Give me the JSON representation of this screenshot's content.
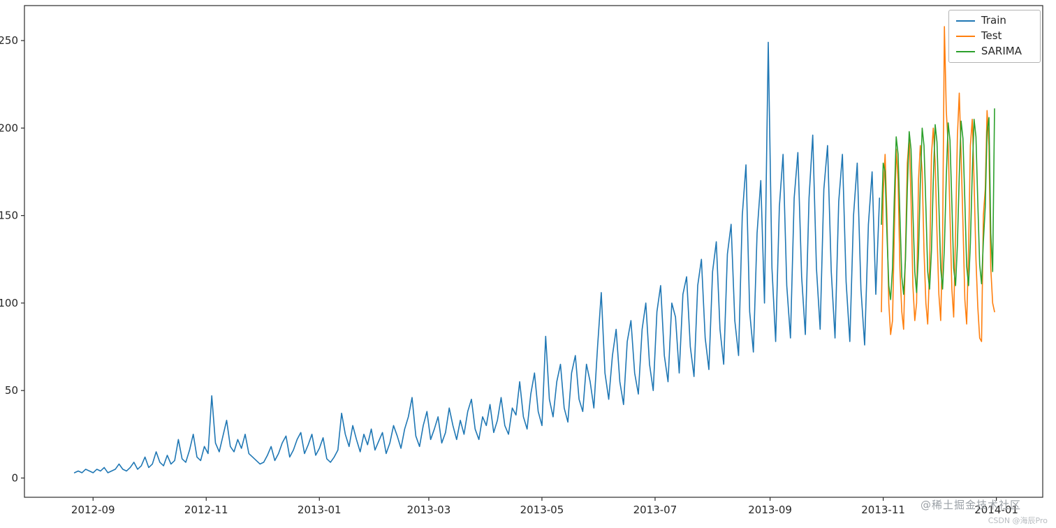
{
  "watermarks": {
    "primary": "@稀土掘金技术社区",
    "secondary": "CSDN @海辰Pro"
  },
  "chart_data": {
    "type": "line",
    "title": "",
    "xlabel": "",
    "ylabel": "",
    "grid": false,
    "legend_position": "upper right",
    "x_domain": [
      "2012-07-26",
      "2014-01-26"
    ],
    "y_domain": [
      -11,
      270
    ],
    "y_ticks": [
      0,
      50,
      100,
      150,
      200,
      250
    ],
    "x_ticks": [
      {
        "date": "2012-09-01",
        "label": "2012-09"
      },
      {
        "date": "2012-11-01",
        "label": "2012-11"
      },
      {
        "date": "2013-01-01",
        "label": "2013-01"
      },
      {
        "date": "2013-03-01",
        "label": "2013-03"
      },
      {
        "date": "2013-05-01",
        "label": "2013-05"
      },
      {
        "date": "2013-07-01",
        "label": "2013-07"
      },
      {
        "date": "2013-09-01",
        "label": "2013-09"
      },
      {
        "date": "2013-11-01",
        "label": "2013-11"
      },
      {
        "date": "2014-01-01",
        "label": "2014-01"
      }
    ],
    "series": [
      {
        "name": "Train",
        "color": "#1f77b4",
        "start": "2012-08-22",
        "step_days": 2,
        "values": [
          3,
          4,
          3,
          5,
          4,
          3,
          5,
          4,
          6,
          3,
          4,
          5,
          8,
          5,
          4,
          6,
          9,
          5,
          7,
          12,
          6,
          8,
          15,
          9,
          7,
          13,
          8,
          10,
          22,
          11,
          9,
          16,
          25,
          12,
          10,
          18,
          14,
          47,
          20,
          15,
          24,
          33,
          18,
          15,
          22,
          17,
          25,
          14,
          12,
          10,
          8,
          9,
          13,
          18,
          10,
          14,
          20,
          24,
          12,
          16,
          22,
          26,
          14,
          19,
          25,
          13,
          17,
          23,
          11,
          9,
          12,
          16,
          37,
          25,
          18,
          30,
          22,
          15,
          25,
          19,
          28,
          16,
          21,
          26,
          14,
          20,
          30,
          24,
          17,
          28,
          35,
          46,
          24,
          18,
          30,
          38,
          22,
          28,
          35,
          20,
          26,
          40,
          30,
          22,
          33,
          25,
          38,
          45,
          28,
          22,
          35,
          30,
          42,
          26,
          33,
          46,
          30,
          25,
          40,
          36,
          55,
          35,
          28,
          48,
          60,
          38,
          30,
          81,
          45,
          35,
          55,
          65,
          40,
          32,
          60,
          70,
          45,
          38,
          65,
          55,
          40,
          75,
          106,
          60,
          45,
          70,
          85,
          55,
          42,
          78,
          90,
          60,
          48,
          85,
          100,
          65,
          50,
          95,
          110,
          70,
          55,
          100,
          92,
          60,
          105,
          115,
          75,
          58,
          110,
          125,
          80,
          62,
          118,
          135,
          85,
          65,
          128,
          145,
          90,
          70,
          150,
          179,
          95,
          72,
          140,
          170,
          100,
          249,
          120,
          78,
          155,
          185,
          110,
          80,
          160,
          186,
          115,
          82,
          160,
          196,
          120,
          85,
          165,
          190,
          118,
          80,
          158,
          185,
          112,
          78,
          150,
          180,
          108,
          76,
          145,
          175,
          105,
          160
        ]
      },
      {
        "name": "Test",
        "color": "#ff7f0e",
        "start": "2013-10-31",
        "step_days": 1,
        "values": [
          95,
          162,
          185,
          150,
          100,
          82,
          90,
          140,
          188,
          170,
          120,
          95,
          85,
          130,
          180,
          195,
          160,
          110,
          90,
          100,
          170,
          190,
          175,
          130,
          100,
          88,
          120,
          185,
          200,
          180,
          140,
          105,
          90,
          135,
          258,
          210,
          190,
          150,
          108,
          92,
          140,
          195,
          220,
          185,
          145,
          102,
          88,
          130,
          190,
          205,
          170,
          125,
          98,
          80,
          78,
          150,
          165,
          210,
          190,
          120,
          100,
          95
        ]
      },
      {
        "name": "SARIMA",
        "color": "#2ca02c",
        "start": "2013-10-31",
        "step_days": 1,
        "values": [
          145,
          180,
          175,
          140,
          110,
          102,
          120,
          160,
          195,
          185,
          150,
          115,
          105,
          125,
          165,
          198,
          188,
          152,
          118,
          106,
          128,
          168,
          200,
          190,
          155,
          118,
          108,
          130,
          170,
          202,
          192,
          156,
          120,
          108,
          132,
          172,
          203,
          193,
          157,
          120,
          110,
          133,
          173,
          204,
          194,
          158,
          121,
          110,
          134,
          174,
          205,
          195,
          158,
          122,
          111,
          135,
          155,
          198,
          206,
          140,
          118,
          211
        ]
      }
    ]
  }
}
